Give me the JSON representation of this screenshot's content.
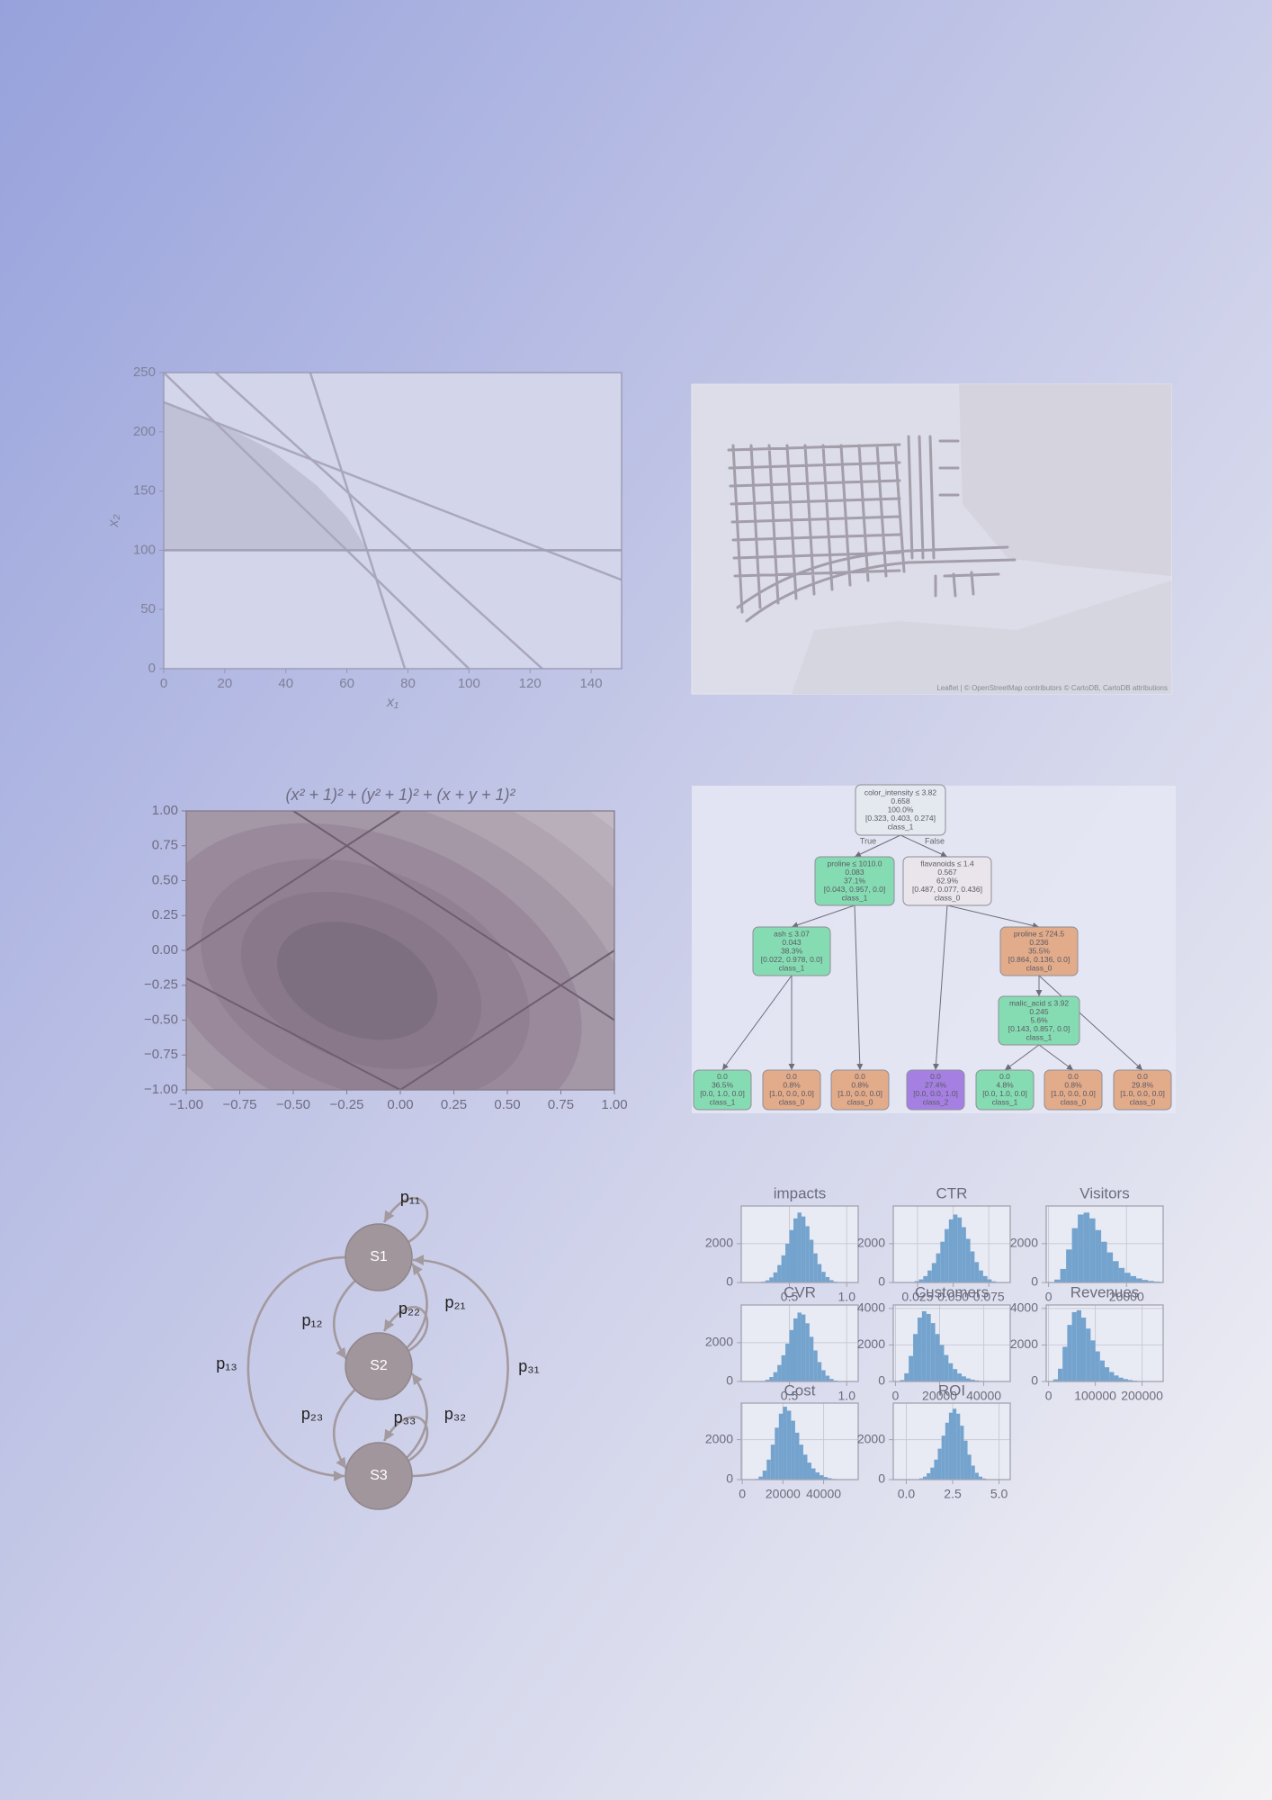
{
  "chart_data": [
    {
      "type": "line",
      "xlabel": "x₁",
      "ylabel": "x₂",
      "xlim": [
        0,
        150
      ],
      "ylim": [
        0,
        250
      ],
      "xticks": [
        0,
        20,
        40,
        60,
        80,
        100,
        120,
        140
      ],
      "yticks": [
        0,
        50,
        100,
        150,
        200,
        250
      ],
      "series": [
        {
          "color": "#bcbcd2",
          "fill": true,
          "x": [
            0,
            0,
            20,
            35,
            50,
            60,
            66.7
          ],
          "values": [
            100,
            225,
            205,
            185,
            155,
            128,
            100
          ]
        },
        {
          "color": "#a9a7bf",
          "x": [
            0,
            100
          ],
          "values": [
            250,
            0
          ]
        },
        {
          "color": "#a9a7bf",
          "x": [
            17,
            124
          ],
          "values": [
            250,
            0
          ]
        },
        {
          "color": "#a9a7bf",
          "x": [
            48,
            79
          ],
          "values": [
            250,
            0
          ]
        },
        {
          "color": "#a9a7bf",
          "x": [
            0,
            150
          ],
          "values": [
            225,
            75
          ]
        },
        {
          "color": "#a09fb8",
          "x": [
            0,
            150
          ],
          "values": [
            100,
            100
          ]
        }
      ]
    },
    {
      "type": "contour",
      "title": "(x² + 1)² + (y² + 1)² + (x + y + 1)²",
      "xlim": [
        -1,
        1
      ],
      "ylim": [
        -1,
        1
      ],
      "xticks": [
        {
          "value": -1,
          "label": "−1.00"
        },
        {
          "value": -0.75,
          "label": "−0.75"
        },
        {
          "value": -0.5,
          "label": "−0.50"
        },
        {
          "value": -0.25,
          "label": "−0.25"
        },
        {
          "value": 0,
          "label": "0.00"
        },
        {
          "value": 0.25,
          "label": "0.25"
        },
        {
          "value": 0.5,
          "label": "0.50"
        },
        {
          "value": 0.75,
          "label": "0.75"
        },
        {
          "value": 1,
          "label": "1.00"
        }
      ],
      "yticks": [
        {
          "value": -1,
          "label": "−1.00"
        },
        {
          "value": -0.75,
          "label": "−0.75"
        },
        {
          "value": -0.5,
          "label": "−0.50"
        },
        {
          "value": -0.25,
          "label": "−0.25"
        },
        {
          "value": 0,
          "label": "0.00"
        },
        {
          "value": 0.25,
          "label": "0.25"
        },
        {
          "value": 0.5,
          "label": "0.50"
        },
        {
          "value": 0.75,
          "label": "0.75"
        },
        {
          "value": 1,
          "label": "1.00"
        }
      ],
      "series": [
        {
          "color": "#6e5f70",
          "x": [
            -1,
            0
          ],
          "values": [
            0,
            1
          ]
        },
        {
          "color": "#6e5f70",
          "x": [
            -0.5,
            1
          ],
          "values": [
            1,
            -0.5
          ]
        },
        {
          "color": "#6e5f70",
          "x": [
            -1,
            0
          ],
          "values": [
            -0.2,
            -1
          ]
        },
        {
          "color": "#6e5f70",
          "x": [
            0,
            1
          ],
          "values": [
            -1,
            0
          ]
        }
      ]
    },
    {
      "type": "histogram",
      "title": "impacts",
      "color": "#74a3ce",
      "grid": true,
      "xlim": [
        0.08,
        1.1
      ],
      "ylim": [
        0,
        3940
      ],
      "xticks": [
        0.5,
        {
          "value": 1,
          "label": "1.0"
        }
      ],
      "yticks": [
        0,
        2000
      ],
      "bins": [
        0.22,
        0.255,
        0.29,
        0.325,
        0.36,
        0.395,
        0.43,
        0.465,
        0.5,
        0.535,
        0.57,
        0.605,
        0.64,
        0.675,
        0.71,
        0.745,
        0.78,
        0.815,
        0.85,
        0.885,
        0.92
      ],
      "values": [
        10,
        40,
        110,
        260,
        520,
        900,
        1400,
        2000,
        2700,
        3300,
        3600,
        3400,
        2900,
        2200,
        1500,
        950,
        550,
        280,
        120,
        40
      ]
    },
    {
      "type": "histogram",
      "title": "CTR",
      "color": "#74a3ce",
      "grid": true,
      "xlim": [
        0.008,
        0.09
      ],
      "ylim": [
        0,
        3940
      ],
      "xticks": [
        0.025,
        {
          "value": 0.05,
          "label": "0.050"
        },
        0.075
      ],
      "yticks": [
        0,
        2000
      ],
      "bins": [
        0.02,
        0.023,
        0.026,
        0.029,
        0.032,
        0.035,
        0.038,
        0.041,
        0.044,
        0.047,
        0.05,
        0.053,
        0.056,
        0.059,
        0.062,
        0.065,
        0.068,
        0.071,
        0.074,
        0.077,
        0.08
      ],
      "values": [
        20,
        70,
        160,
        330,
        620,
        1000,
        1500,
        2100,
        2750,
        3250,
        3500,
        3350,
        2850,
        2250,
        1600,
        1050,
        620,
        330,
        160,
        60
      ]
    },
    {
      "type": "histogram",
      "title": "Visitors",
      "color": "#74a3ce",
      "grid": true,
      "xlim": [
        -600,
        29400
      ],
      "ylim": [
        0,
        3940
      ],
      "xticks": [
        0,
        20000
      ],
      "yticks": [
        0,
        2000
      ],
      "bins": [
        1500,
        3000,
        4500,
        6000,
        7500,
        9000,
        10500,
        12000,
        13500,
        15000,
        16500,
        18000,
        19500,
        21000,
        22500,
        24000,
        25500,
        27000,
        28500,
        30000,
        31500
      ],
      "values": [
        150,
        700,
        1700,
        2800,
        3500,
        3600,
        3300,
        2700,
        2100,
        1550,
        1100,
        750,
        500,
        330,
        210,
        130,
        80,
        50,
        30,
        15
      ]
    },
    {
      "type": "histogram",
      "title": "CVR",
      "color": "#74a3ce",
      "grid": true,
      "xlim": [
        0.08,
        1.1
      ],
      "ylim": [
        0,
        3940
      ],
      "xticks": [
        0.5,
        {
          "value": 1,
          "label": "1.0"
        }
      ],
      "yticks": [
        0,
        2000
      ],
      "bins": [
        0.22,
        0.255,
        0.29,
        0.325,
        0.36,
        0.395,
        0.43,
        0.465,
        0.5,
        0.535,
        0.57,
        0.605,
        0.64,
        0.675,
        0.71,
        0.745,
        0.78,
        0.815,
        0.85,
        0.885,
        0.92
      ],
      "values": [
        5,
        30,
        90,
        230,
        480,
        850,
        1350,
        1950,
        2650,
        3250,
        3550,
        3450,
        3000,
        2300,
        1600,
        1000,
        580,
        300,
        130,
        50
      ]
    },
    {
      "type": "histogram",
      "title": "Customers",
      "color": "#74a3ce",
      "grid": true,
      "xlim": [
        -1000,
        52000
      ],
      "ylim": [
        0,
        4190
      ],
      "xticks": [
        0,
        20000,
        40000
      ],
      "yticks": [
        0,
        2000,
        4000
      ],
      "bins": [
        2000,
        4000,
        6000,
        8000,
        10000,
        12000,
        14000,
        16000,
        18000,
        20000,
        22000,
        24000,
        26000,
        28000,
        30000,
        32000,
        34000,
        36000,
        38000,
        40000,
        42000
      ],
      "values": [
        80,
        450,
        1400,
        2600,
        3500,
        3850,
        3700,
        3200,
        2600,
        2000,
        1450,
        1000,
        680,
        440,
        280,
        170,
        100,
        60,
        30,
        15
      ]
    },
    {
      "type": "histogram",
      "title": "Revenues",
      "color": "#74a3ce",
      "grid": true,
      "xlim": [
        -5000,
        245000
      ],
      "ylim": [
        0,
        4190
      ],
      "xticks": [
        0,
        100000,
        200000
      ],
      "yticks": [
        0,
        2000,
        4000
      ],
      "bins": [
        10000,
        20000,
        30000,
        40000,
        50000,
        60000,
        70000,
        80000,
        90000,
        100000,
        110000,
        120000,
        130000,
        140000,
        150000,
        160000,
        170000,
        180000,
        190000,
        200000,
        210000
      ],
      "values": [
        120,
        700,
        1900,
        3100,
        3800,
        3900,
        3500,
        2900,
        2250,
        1650,
        1150,
        780,
        520,
        330,
        210,
        130,
        80,
        45,
        25,
        10
      ]
    },
    {
      "type": "histogram",
      "title": "Cost",
      "color": "#74a3ce",
      "grid": true,
      "xlim": [
        -500,
        57000
      ],
      "ylim": [
        0,
        3830
      ],
      "xticks": [
        0,
        20000,
        40000
      ],
      "yticks": [
        0,
        2000
      ],
      "bins": [
        6000,
        8000,
        10000,
        12000,
        14000,
        16000,
        18000,
        20000,
        22000,
        24000,
        26000,
        28000,
        30000,
        32000,
        34000,
        36000,
        38000,
        40000,
        42000,
        44000,
        46000
      ],
      "values": [
        30,
        150,
        450,
        1000,
        1750,
        2600,
        3300,
        3650,
        3450,
        2950,
        2350,
        1750,
        1250,
        850,
        560,
        360,
        220,
        130,
        70,
        30
      ]
    },
    {
      "type": "histogram",
      "title": "ROI",
      "color": "#74a3ce",
      "grid": true,
      "xlim": [
        -0.7,
        5.6
      ],
      "ylim": [
        0,
        3830
      ],
      "xticks": [
        {
          "value": 0,
          "label": "0.0"
        },
        2.5,
        {
          "value": 5,
          "label": "5.0"
        }
      ],
      "yticks": [
        0,
        2000
      ],
      "bins": [
        0.5,
        0.7,
        0.9,
        1.1,
        1.3,
        1.5,
        1.7,
        1.9,
        2.1,
        2.3,
        2.5,
        2.7,
        2.9,
        3.1,
        3.3,
        3.5,
        3.7,
        3.9,
        4.1,
        4.3,
        4.5
      ],
      "values": [
        20,
        60,
        150,
        320,
        600,
        1000,
        1550,
        2200,
        2850,
        3350,
        3550,
        3300,
        2700,
        1950,
        1250,
        700,
        340,
        150,
        55,
        15
      ]
    }
  ],
  "map": {
    "attribution": "Leaflet | © OpenStreetMap contributors © CartoDB, CartoDB attributions"
  },
  "tree": {
    "edge_labels": [
      "True",
      "False"
    ],
    "nodes": [
      {
        "color": "#e4e8ef",
        "lines": [
          "color_intensity ≤ 3.82",
          "0.658",
          "100.0%",
          "[0.323, 0.403, 0.274]",
          "class_1"
        ]
      },
      {
        "color": "#86dcb2",
        "lines": [
          "proline ≤ 1010.0",
          "0.083",
          "37.1%",
          "[0.043, 0.957, 0.0]",
          "class_1"
        ]
      },
      {
        "color": "#e9e5ea",
        "lines": [
          "flavanoids ≤ 1.4",
          "0.567",
          "62.9%",
          "[0.487, 0.077, 0.436]",
          "class_0"
        ]
      },
      {
        "color": "#86dcb2",
        "lines": [
          "ash ≤ 3.07",
          "0.043",
          "38.3%",
          "[0.022, 0.978, 0.0]",
          "class_1"
        ]
      },
      {
        "color": "#e2ab8a",
        "lines": [
          "proline ≤ 724.5",
          "0.236",
          "35.5%",
          "[0.864, 0.136, 0.0]",
          "class_0"
        ]
      },
      {
        "color": "#86dcb2",
        "lines": [
          "malic_acid ≤ 3.92",
          "0.245",
          "5.6%",
          "[0.143, 0.857, 0.0]",
          "class_1"
        ]
      },
      {
        "color": "#86dcb2",
        "lines": [
          "0.0",
          "36.5%",
          "[0.0, 1.0, 0.0]",
          "class_1"
        ]
      },
      {
        "color": "#e2ab8a",
        "lines": [
          "0.0",
          "0.8%",
          "[1.0, 0.0, 0.0]",
          "class_0"
        ]
      },
      {
        "color": "#e2ab8a",
        "lines": [
          "0.0",
          "0.8%",
          "[1.0, 0.0, 0.0]",
          "class_0"
        ]
      },
      {
        "color": "#a580e2",
        "lines": [
          "0.0",
          "27.4%",
          "[0.0, 0.0, 1.0]",
          "class_2"
        ]
      },
      {
        "color": "#86dcb2",
        "lines": [
          "0.0",
          "4.8%",
          "[0.0, 1.0, 0.0]",
          "class_1"
        ]
      },
      {
        "color": "#e2ab8a",
        "lines": [
          "0.0",
          "0.8%",
          "[1.0, 0.0, 0.0]",
          "class_0"
        ]
      },
      {
        "color": "#e2ab8a",
        "lines": [
          "0.0",
          "29.8%",
          "[1.0, 0.0, 0.0]",
          "class_0"
        ]
      }
    ]
  },
  "markov": {
    "states": [
      "S1",
      "S2",
      "S3"
    ],
    "transitions": [
      "p₁₁",
      "p₁₂",
      "p₁₃",
      "p₂₁",
      "p₂₂",
      "p₂₃",
      "p₃₁",
      "p₃₂",
      "p₃₃"
    ]
  }
}
